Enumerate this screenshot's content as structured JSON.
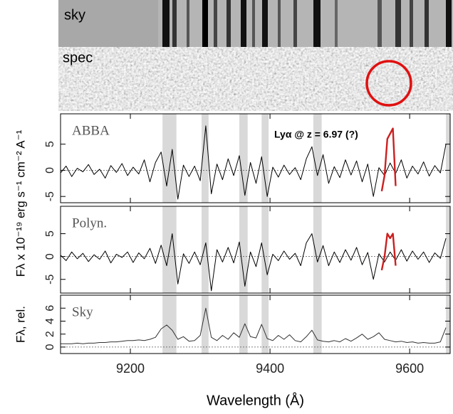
{
  "strips": {
    "sky_label": "sky",
    "spec_label": "spec"
  },
  "chart_data": [
    {
      "type": "line",
      "label": "ABBA",
      "annotation": "Lyα @ z = 6.97 (?)",
      "y_label": "Fλ x 10⁻¹⁹ erg s⁻¹ cm⁻² A⁻¹",
      "xlim": [
        9100,
        9658
      ],
      "xticks": [
        9200,
        9400,
        9600
      ],
      "ylim": [
        -6.2,
        10.8
      ],
      "yticks": [
        -5,
        0,
        5
      ],
      "zero_line": true,
      "bands": [
        [
          9246,
          9266
        ],
        [
          9302,
          9312
        ],
        [
          9356,
          9368
        ],
        [
          9388,
          9398
        ],
        [
          9462,
          9474
        ],
        [
          9652,
          9658
        ]
      ],
      "x": [
        9100,
        9108,
        9116,
        9124,
        9132,
        9140,
        9148,
        9156,
        9164,
        9172,
        9180,
        9188,
        9196,
        9204,
        9212,
        9220,
        9228,
        9236,
        9244,
        9252,
        9260,
        9268,
        9276,
        9284,
        9292,
        9300,
        9308,
        9316,
        9324,
        9332,
        9340,
        9348,
        9356,
        9364,
        9372,
        9380,
        9388,
        9396,
        9404,
        9412,
        9420,
        9428,
        9436,
        9444,
        9452,
        9460,
        9468,
        9476,
        9484,
        9492,
        9500,
        9508,
        9516,
        9524,
        9532,
        9540,
        9548,
        9556,
        9564,
        9572,
        9580,
        9588,
        9596,
        9604,
        9612,
        9620,
        9628,
        9636,
        9644,
        9652
      ],
      "series": [
        {
          "color": "#000000",
          "values": [
            -0.5,
            0.8,
            -1.2,
            0.4,
            -0.3,
            1.1,
            -0.8,
            0.2,
            -1.5,
            0.9,
            -0.4,
            1.3,
            -1.0,
            0.6,
            -0.7,
            2.0,
            -2.2,
            1.5,
            3.5,
            -3.0,
            4.0,
            -5.5,
            1.0,
            -1.2,
            0.8,
            -2.0,
            8.5,
            -4.5,
            1.2,
            -1.8,
            2.2,
            -1.0,
            2.8,
            -4.8,
            1.5,
            -2.5,
            2.6,
            -5.0,
            0.6,
            -1.3,
            1.0,
            -0.8,
            0.5,
            -1.8,
            2.2,
            4.5,
            -1.0,
            3.0,
            -2.5,
            0.7,
            -1.4,
            2.0,
            -0.9,
            1.8,
            -2.2,
            1.2,
            -5.0,
            0.5,
            -1.0,
            1.4,
            -0.6,
            2.0,
            -1.5,
            0.8,
            -0.7,
            1.6,
            -1.1,
            0.9,
            -0.5,
            5.0
          ]
        },
        {
          "color": "#cc1f1f",
          "x": [
            9560,
            9564,
            9568,
            9572,
            9576,
            9580
          ],
          "values": [
            -4,
            -1,
            6,
            7,
            8,
            -3
          ]
        }
      ]
    },
    {
      "type": "line",
      "label": "Polyn.",
      "xlim": [
        9100,
        9658
      ],
      "xticks": [
        9200,
        9400,
        9600
      ],
      "ylim": [
        -8,
        11
      ],
      "yticks": [
        -5,
        0,
        5
      ],
      "zero_line": true,
      "bands": [
        [
          9246,
          9266
        ],
        [
          9302,
          9312
        ],
        [
          9356,
          9368
        ],
        [
          9388,
          9398
        ],
        [
          9462,
          9474
        ],
        [
          9652,
          9658
        ]
      ],
      "x": [
        9100,
        9108,
        9116,
        9124,
        9132,
        9140,
        9148,
        9156,
        9164,
        9172,
        9180,
        9188,
        9196,
        9204,
        9212,
        9220,
        9228,
        9236,
        9244,
        9252,
        9260,
        9268,
        9276,
        9284,
        9292,
        9300,
        9308,
        9316,
        9324,
        9332,
        9340,
        9348,
        9356,
        9364,
        9372,
        9380,
        9388,
        9396,
        9404,
        9412,
        9420,
        9428,
        9436,
        9444,
        9452,
        9460,
        9468,
        9476,
        9484,
        9492,
        9500,
        9508,
        9516,
        9524,
        9532,
        9540,
        9548,
        9556,
        9564,
        9572,
        9580,
        9588,
        9596,
        9604,
        9612,
        9620,
        9628,
        9636,
        9644,
        9652
      ],
      "series": [
        {
          "color": "#000000",
          "values": [
            0.3,
            -0.9,
            1.0,
            -0.5,
            0.7,
            -1.1,
            0.4,
            -0.6,
            1.2,
            -1.4,
            0.5,
            -0.2,
            1.0,
            -1.3,
            0.8,
            -0.5,
            1.8,
            -1.5,
            2.5,
            -2.0,
            5.0,
            -6.0,
            0.6,
            -1.5,
            1.0,
            -1.8,
            3.0,
            -7.5,
            1.5,
            -1.2,
            2.0,
            -1.4,
            3.2,
            -6.5,
            1.0,
            -2.2,
            3.0,
            -4.0,
            0.5,
            -0.9,
            1.2,
            -0.6,
            0.7,
            -2.0,
            3.0,
            5.0,
            -1.2,
            2.4,
            -2.0,
            1.0,
            -1.3,
            1.5,
            -0.8,
            2.0,
            -1.8,
            0.9,
            -5.0,
            0.6,
            -1.2,
            1.0,
            -0.8,
            1.5,
            -1.0,
            1.2,
            -0.6,
            1.0,
            -1.3,
            0.8,
            -0.4,
            4.0
          ]
        },
        {
          "color": "#cc1f1f",
          "x": [
            9560,
            9564,
            9568,
            9572,
            9576,
            9580
          ],
          "values": [
            -3,
            0,
            5,
            4,
            5,
            -2
          ]
        }
      ]
    },
    {
      "type": "line",
      "label": "Sky",
      "y_label": "Fλ, rel.",
      "x_label": "Wavelength (Å)",
      "xlim": [
        9100,
        9658
      ],
      "xticks": [
        9200,
        9400,
        9600
      ],
      "ylim": [
        -1,
        8
      ],
      "yticks": [
        0,
        2,
        4,
        6
      ],
      "zero_line": true,
      "bands": [
        [
          9246,
          9266
        ],
        [
          9302,
          9312
        ],
        [
          9356,
          9368
        ],
        [
          9388,
          9398
        ],
        [
          9462,
          9474
        ],
        [
          9652,
          9658
        ]
      ],
      "x": [
        9100,
        9108,
        9116,
        9124,
        9132,
        9140,
        9148,
        9156,
        9164,
        9172,
        9180,
        9188,
        9196,
        9204,
        9212,
        9220,
        9228,
        9236,
        9244,
        9252,
        9260,
        9268,
        9276,
        9284,
        9292,
        9300,
        9308,
        9316,
        9324,
        9332,
        9340,
        9348,
        9356,
        9364,
        9372,
        9380,
        9388,
        9396,
        9404,
        9412,
        9420,
        9428,
        9436,
        9444,
        9452,
        9460,
        9468,
        9476,
        9484,
        9492,
        9500,
        9508,
        9516,
        9524,
        9532,
        9540,
        9548,
        9556,
        9564,
        9572,
        9580,
        9588,
        9596,
        9604,
        9612,
        9620,
        9628,
        9636,
        9644,
        9652
      ],
      "series": [
        {
          "color": "#333333",
          "values": [
            0.5,
            0.5,
            0.5,
            0.6,
            0.5,
            0.6,
            0.6,
            0.7,
            0.7,
            0.8,
            0.8,
            0.9,
            1.0,
            1.0,
            1.1,
            1.0,
            1.2,
            1.5,
            2.8,
            3.4,
            2.6,
            1.2,
            1.6,
            0.9,
            1.0,
            1.8,
            6.0,
            1.5,
            1.0,
            1.8,
            1.2,
            2.2,
            1.5,
            3.6,
            1.6,
            1.4,
            3.5,
            1.3,
            1.0,
            1.8,
            1.2,
            1.9,
            1.0,
            0.8,
            1.6,
            2.6,
            1.1,
            0.9,
            0.8,
            1.0,
            0.8,
            1.3,
            0.9,
            1.4,
            2.0,
            1.2,
            1.6,
            2.2,
            1.2,
            1.0,
            0.8,
            0.9,
            0.7,
            0.8,
            0.6,
            0.7,
            0.6,
            0.6,
            0.8,
            3.0
          ]
        }
      ]
    }
  ]
}
